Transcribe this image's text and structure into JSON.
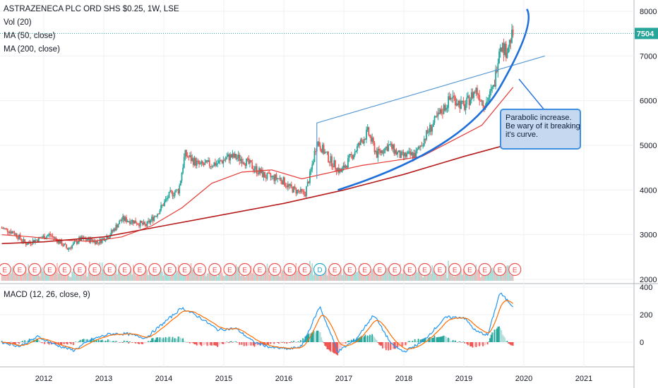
{
  "legend": {
    "title": "ASTRAZENECA PLC ORD SHS $0.25, 1W, LSE",
    "volume": "Vol (20)",
    "ma50": "MA (50, close)",
    "ma200": "MA (200, close)"
  },
  "macd_legend": "MACD (12, 26, close, 9)",
  "callout": {
    "line1": "Parabolic increase.",
    "line2": "Be wary of it breaking",
    "line3": "it's curve."
  },
  "last_price": "7504",
  "colors": {
    "up": "#26a69a",
    "down": "#ef5350",
    "ma50": "#e53935",
    "ma200": "#b71c1c",
    "drawing": "#1e6fd9",
    "macd_line": "#2196f3",
    "signal_line": "#ff6d00"
  },
  "chart_data": [
    {
      "type": "line",
      "title": "ASTRAZENECA PLC ORD SHS $0.25, 1W, LSE",
      "y_axis": {
        "range": [
          2000,
          8100
        ],
        "ticks": [
          "2000",
          "3000",
          "4000",
          "5000",
          "6000",
          "7000",
          "8000"
        ]
      },
      "x_axis": {
        "ticks": [
          "2012",
          "2013",
          "2014",
          "2015",
          "2016",
          "2017",
          "2018",
          "2019",
          "2020",
          "2021"
        ]
      },
      "series": [
        {
          "name": "ASTRAZENECA PLC ORD SHS $0.25, 1W, LSE",
          "points": [
            [
              2011.3,
              3150
            ],
            [
              2011.5,
              3050
            ],
            [
              2011.7,
              2800
            ],
            [
              2011.9,
              2900
            ],
            [
              2012.1,
              3000
            ],
            [
              2012.3,
              2800
            ],
            [
              2012.4,
              2680
            ],
            [
              2012.6,
              2900
            ],
            [
              2012.8,
              2880
            ],
            [
              2012.9,
              2830
            ],
            [
              2013.1,
              3000
            ],
            [
              2013.3,
              3350
            ],
            [
              2013.5,
              3300
            ],
            [
              2013.7,
              3200
            ],
            [
              2013.9,
              3500
            ],
            [
              2014.1,
              3900
            ],
            [
              2014.25,
              4000
            ],
            [
              2014.35,
              4800
            ],
            [
              2014.6,
              4550
            ],
            [
              2014.9,
              4600
            ],
            [
              2015.1,
              4750
            ],
            [
              2015.3,
              4700
            ],
            [
              2015.5,
              4500
            ],
            [
              2015.7,
              4300
            ],
            [
              2015.95,
              4250
            ],
            [
              2016.1,
              4050
            ],
            [
              2016.35,
              3900
            ],
            [
              2016.45,
              4400
            ],
            [
              2016.55,
              5100
            ],
            [
              2016.75,
              4700
            ],
            [
              2016.95,
              4400
            ],
            [
              2017.2,
              4900
            ],
            [
              2017.4,
              5300
            ],
            [
              2017.55,
              4800
            ],
            [
              2017.75,
              5000
            ],
            [
              2017.95,
              4750
            ],
            [
              2018.2,
              4800
            ],
            [
              2018.4,
              5300
            ],
            [
              2018.6,
              5700
            ],
            [
              2018.8,
              6100
            ],
            [
              2019.0,
              5850
            ],
            [
              2019.2,
              6250
            ],
            [
              2019.35,
              5900
            ],
            [
              2019.5,
              6300
            ],
            [
              2019.6,
              7300
            ],
            [
              2019.7,
              7100
            ],
            [
              2019.82,
              7504
            ]
          ]
        },
        {
          "name": "MA (50, close)",
          "points": [
            [
              2011.3,
              3000
            ],
            [
              2011.8,
              2950
            ],
            [
              2012.3,
              2880
            ],
            [
              2012.8,
              2850
            ],
            [
              2013.3,
              2950
            ],
            [
              2013.8,
              3200
            ],
            [
              2014.3,
              3600
            ],
            [
              2014.8,
              4150
            ],
            [
              2015.3,
              4400
            ],
            [
              2015.8,
              4450
            ],
            [
              2016.3,
              4250
            ],
            [
              2016.8,
              4400
            ],
            [
              2017.3,
              4550
            ],
            [
              2017.8,
              4650
            ],
            [
              2018.3,
              4750
            ],
            [
              2018.8,
              5100
            ],
            [
              2019.3,
              5450
            ],
            [
              2019.82,
              6300
            ]
          ]
        },
        {
          "name": "MA (200, close)",
          "points": [
            [
              2011.3,
              2800
            ],
            [
              2012.0,
              2840
            ],
            [
              2013.0,
              2950
            ],
            [
              2014.0,
              3200
            ],
            [
              2015.0,
              3450
            ],
            [
              2016.0,
              3700
            ],
            [
              2017.0,
              4000
            ],
            [
              2018.0,
              4350
            ],
            [
              2019.0,
              4750
            ],
            [
              2019.82,
              5050
            ]
          ]
        }
      ]
    },
    {
      "type": "line",
      "title": "MACD (12, 26, close, 9)",
      "y_axis": {
        "range": [
          -100,
          420
        ],
        "ticks": [
          "0",
          "200",
          "400"
        ]
      },
      "series": [
        {
          "name": "MACD (12, 26, close, 9)",
          "points": [
            [
              2011.3,
              0
            ],
            [
              2011.6,
              -30
            ],
            [
              2011.9,
              40
            ],
            [
              2012.2,
              -20
            ],
            [
              2012.5,
              -60
            ],
            [
              2012.8,
              20
            ],
            [
              2013.1,
              60
            ],
            [
              2013.4,
              60
            ],
            [
              2013.7,
              30
            ],
            [
              2014.0,
              140
            ],
            [
              2014.3,
              250
            ],
            [
              2014.6,
              180
            ],
            [
              2014.9,
              90
            ],
            [
              2015.2,
              100
            ],
            [
              2015.5,
              0
            ],
            [
              2015.8,
              -40
            ],
            [
              2016.1,
              -50
            ],
            [
              2016.3,
              -30
            ],
            [
              2016.6,
              260
            ],
            [
              2016.9,
              -70
            ],
            [
              2017.2,
              20
            ],
            [
              2017.5,
              200
            ],
            [
              2017.8,
              -20
            ],
            [
              2018.0,
              -70
            ],
            [
              2018.3,
              0
            ],
            [
              2018.7,
              180
            ],
            [
              2019.0,
              180
            ],
            [
              2019.2,
              80
            ],
            [
              2019.4,
              50
            ],
            [
              2019.6,
              360
            ],
            [
              2019.82,
              260
            ]
          ]
        }
      ]
    }
  ]
}
